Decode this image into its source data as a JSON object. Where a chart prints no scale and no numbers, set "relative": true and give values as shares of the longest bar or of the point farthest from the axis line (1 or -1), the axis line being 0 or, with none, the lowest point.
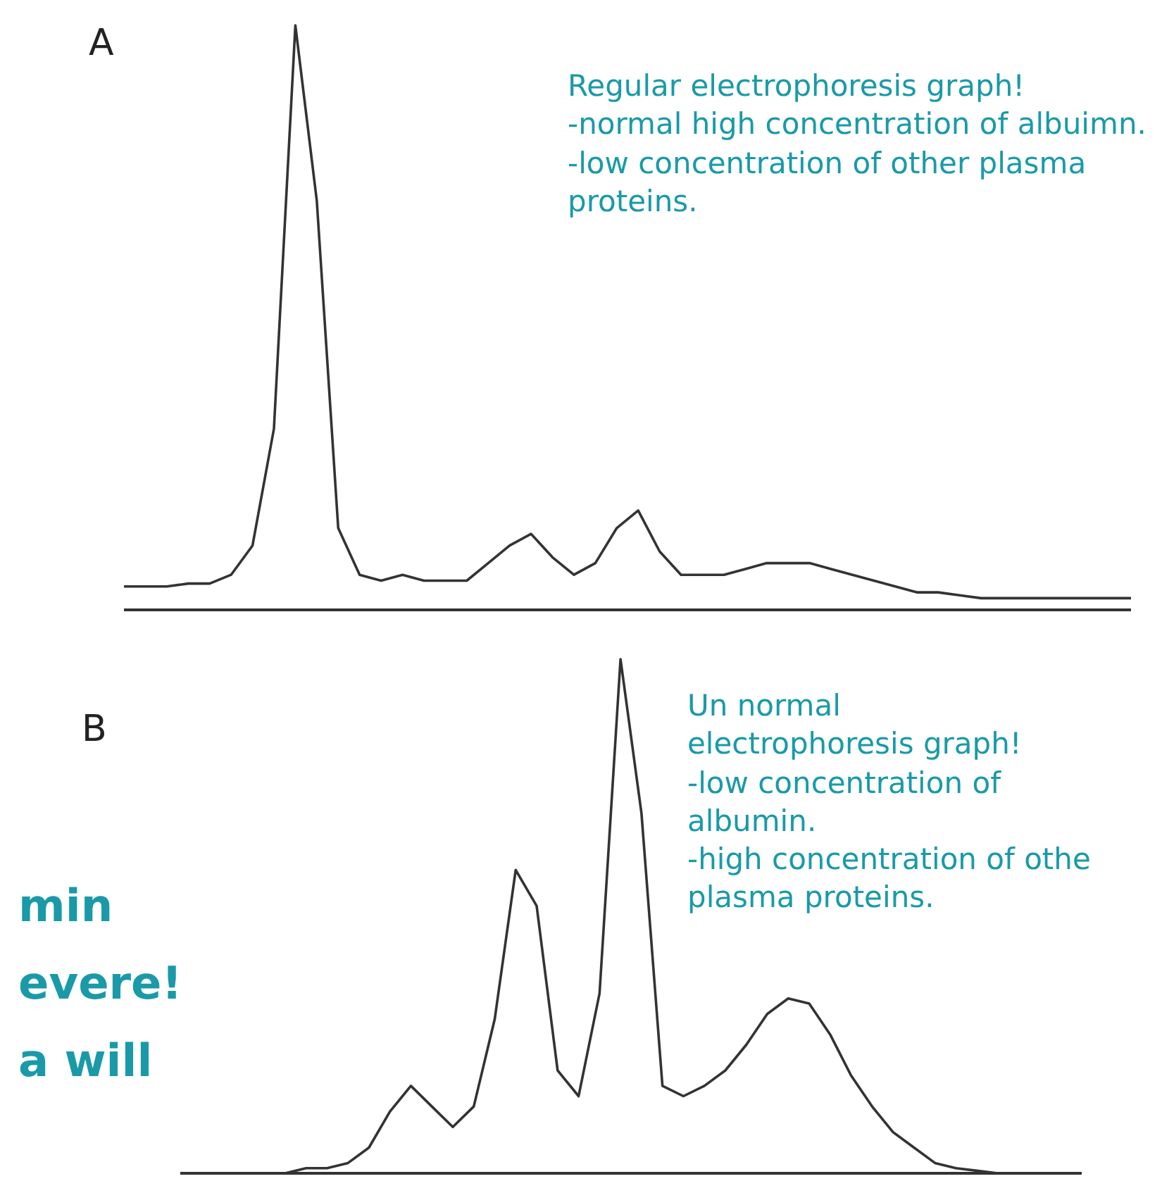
{
  "chart_data": [
    {
      "type": "line",
      "title": "A",
      "relative": true,
      "color": "#333333",
      "categories": [
        null,
        null,
        null,
        null,
        null,
        null,
        null,
        null,
        null,
        null,
        null,
        null,
        null,
        null,
        null,
        null,
        null,
        null,
        null,
        null,
        null,
        null,
        null,
        null,
        null,
        null,
        null,
        null,
        null,
        null,
        null,
        null,
        null,
        null,
        null,
        null,
        null,
        null,
        null,
        null,
        null,
        null,
        null,
        null,
        null,
        null,
        null,
        null
      ],
      "values": [
        0.04,
        0.04,
        0.04,
        0.045,
        0.045,
        0.06,
        0.11,
        0.31,
        1,
        0.7,
        0.14,
        0.06,
        0.05,
        0.06,
        0.05,
        0.05,
        0.05,
        0.08,
        0.11,
        0.13,
        0.09,
        0.06,
        0.08,
        0.14,
        0.17,
        0.1,
        0.06,
        0.06,
        0.06,
        0.07,
        0.08,
        0.08,
        0.08,
        0.07,
        0.06,
        0.05,
        0.04,
        0.03,
        0.03,
        0.025,
        0.02,
        0.02,
        0.02,
        0.02,
        0.02,
        0.02,
        0.02,
        0.02
      ],
      "annotations": [
        "Regular electrophoresis graph!\n-normal high concentration of albuimn.\n-low concentration of other plasma proteins."
      ]
    },
    {
      "type": "line",
      "title": "B",
      "relative": true,
      "color": "#333333",
      "categories": [
        null,
        null,
        null,
        null,
        null,
        null,
        null,
        null,
        null,
        null,
        null,
        null,
        null,
        null,
        null,
        null,
        null,
        null,
        null,
        null,
        null,
        null,
        null,
        null,
        null,
        null,
        null,
        null,
        null,
        null,
        null,
        null,
        null,
        null,
        null,
        null,
        null,
        null,
        null,
        null,
        null,
        null,
        null,
        null
      ],
      "values": [
        0,
        0,
        0,
        0,
        0,
        0,
        0.01,
        0.01,
        0.02,
        0.05,
        0.12,
        0.17,
        0.13,
        0.09,
        0.13,
        0.3,
        0.59,
        0.52,
        0.2,
        0.15,
        0.35,
        1,
        0.7,
        0.17,
        0.15,
        0.17,
        0.2,
        0.25,
        0.31,
        0.34,
        0.33,
        0.27,
        0.19,
        0.13,
        0.08,
        0.05,
        0.02,
        0.01,
        0.005,
        0,
        0,
        0,
        0,
        0
      ],
      "annotations": [
        "Un normal\nelectrophoresis graph!\n-low concentration of albumin.\n-high concentration of othe plasma proteins.",
        "min",
        "evere!",
        "a will"
      ]
    }
  ]
}
